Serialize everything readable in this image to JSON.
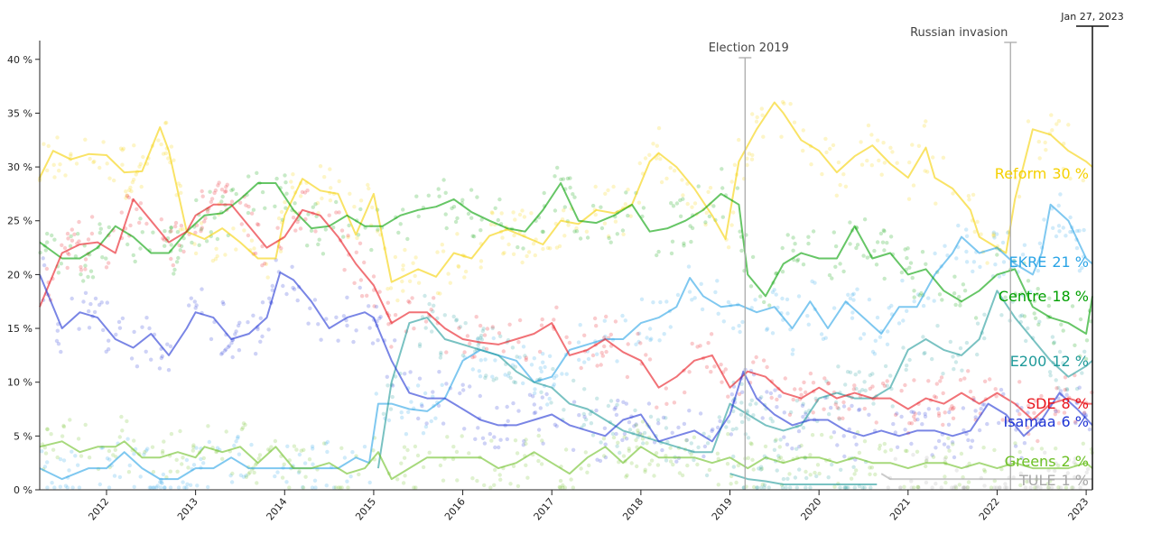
{
  "chart_data": {
    "type": "line",
    "title": "",
    "xlabel": "",
    "ylabel": "",
    "xlim": [
      2011.25,
      2023.07
    ],
    "ylim": [
      0,
      43
    ],
    "y_ticks": [
      {
        "value": 0,
        "label": "0 %"
      },
      {
        "value": 5,
        "label": "5 %"
      },
      {
        "value": 10,
        "label": "10 %"
      },
      {
        "value": 15,
        "label": "15 %"
      },
      {
        "value": 20,
        "label": "20 %"
      },
      {
        "value": 25,
        "label": "25 %"
      },
      {
        "value": 30,
        "label": "30 %"
      },
      {
        "value": 35,
        "label": "35 %"
      },
      {
        "value": 40,
        "label": "40 %"
      }
    ],
    "x_ticks": [
      {
        "value": 2012,
        "label": "2012"
      },
      {
        "value": 2013,
        "label": "2013"
      },
      {
        "value": 2014,
        "label": "2014"
      },
      {
        "value": 2015,
        "label": "2015"
      },
      {
        "value": 2016,
        "label": "2016"
      },
      {
        "value": 2017,
        "label": "2017"
      },
      {
        "value": 2018,
        "label": "2018"
      },
      {
        "value": 2019,
        "label": "2019"
      },
      {
        "value": 2020,
        "label": "2020"
      },
      {
        "value": 2021,
        "label": "2021"
      },
      {
        "value": 2022,
        "label": "2022"
      },
      {
        "value": 2023,
        "label": "2023"
      }
    ],
    "grid": false,
    "legend": "inline-right",
    "current_date_label": "Jan 27, 2023",
    "annotations": [
      {
        "x": 2019.17,
        "label": "Election 2019"
      },
      {
        "x": 2022.15,
        "label": "Russian invasion"
      }
    ],
    "series": [
      {
        "name": "Reform",
        "end_value": "30 %",
        "color": "#f5d000",
        "x": [
          2011.25,
          2011.4,
          2011.6,
          2011.8,
          2012.0,
          2012.2,
          2012.4,
          2012.6,
          2012.7,
          2012.9,
          2013.1,
          2013.3,
          2013.5,
          2013.7,
          2013.9,
          2014.0,
          2014.2,
          2014.4,
          2014.6,
          2014.8,
          2015.0,
          2015.2,
          2015.5,
          2015.7,
          2015.9,
          2016.1,
          2016.3,
          2016.5,
          2016.7,
          2016.9,
          2017.1,
          2017.3,
          2017.5,
          2017.7,
          2017.9,
          2018.1,
          2018.2,
          2018.4,
          2018.6,
          2018.8,
          2018.95,
          2019.1,
          2019.3,
          2019.5,
          2019.6,
          2019.8,
          2020.0,
          2020.2,
          2020.4,
          2020.6,
          2020.8,
          2021.0,
          2021.2,
          2021.3,
          2021.5,
          2021.7,
          2021.8,
          2022.0,
          2022.1,
          2022.2,
          2022.4,
          2022.6,
          2022.8,
          2023.0,
          2023.07
        ],
        "y": [
          29,
          31.5,
          30.7,
          31.2,
          31.1,
          29.5,
          29.6,
          33.7,
          31.5,
          24,
          23.3,
          24.3,
          23,
          21.5,
          21.5,
          25.5,
          28.9,
          27.8,
          27.5,
          23.7,
          27.5,
          19.3,
          20.5,
          19.8,
          22,
          21.5,
          23.6,
          24.2,
          23.5,
          22.8,
          25,
          24.7,
          26,
          25.7,
          26.5,
          30.5,
          31.3,
          30,
          28,
          25.5,
          23.3,
          30.5,
          33.5,
          36,
          35,
          32.5,
          31.5,
          29.5,
          31,
          32,
          30.3,
          29,
          31.8,
          29,
          28,
          26,
          23.5,
          22.5,
          22,
          27,
          33.5,
          33,
          31.5,
          30.5,
          30
        ]
      },
      {
        "name": "EKRE",
        "end_value": "21 %",
        "color": "#2aa4e6",
        "x": [
          2011.25,
          2011.5,
          2011.8,
          2012.0,
          2012.2,
          2012.4,
          2012.6,
          2012.8,
          2013.0,
          2013.2,
          2013.4,
          2013.6,
          2013.8,
          2014.0,
          2014.2,
          2014.4,
          2014.6,
          2014.8,
          2014.95,
          2015.05,
          2015.2,
          2015.4,
          2015.6,
          2015.8,
          2016.0,
          2016.2,
          2016.4,
          2016.6,
          2016.8,
          2017.0,
          2017.2,
          2017.4,
          2017.6,
          2017.8,
          2018.0,
          2018.2,
          2018.4,
          2018.55,
          2018.7,
          2018.9,
          2019.1,
          2019.3,
          2019.5,
          2019.7,
          2019.9,
          2020.1,
          2020.3,
          2020.5,
          2020.7,
          2020.9,
          2021.1,
          2021.3,
          2021.5,
          2021.6,
          2021.8,
          2022.0,
          2022.2,
          2022.4,
          2022.5,
          2022.6,
          2022.8,
          2023.0,
          2023.07
        ],
        "y": [
          2,
          1,
          2,
          2,
          3.5,
          2,
          1,
          1,
          2,
          2,
          3,
          2,
          2,
          2,
          2,
          2,
          2,
          3,
          2.5,
          8,
          8,
          7.5,
          7.3,
          8.5,
          12,
          13,
          12.5,
          12,
          10,
          10.5,
          13,
          13.5,
          14,
          14,
          15.5,
          16,
          17,
          19.7,
          18,
          17,
          17.2,
          16.5,
          17,
          15,
          17.5,
          15,
          17.5,
          16,
          14.5,
          17,
          17,
          20,
          22,
          23.5,
          22,
          22.5,
          21,
          20,
          22,
          26.5,
          25,
          21.5,
          21
        ]
      },
      {
        "name": "Centre",
        "end_value": "18 %",
        "color": "#00a000",
        "x": [
          2011.25,
          2011.5,
          2011.7,
          2011.9,
          2012.1,
          2012.3,
          2012.5,
          2012.7,
          2012.9,
          2013.1,
          2013.3,
          2013.5,
          2013.7,
          2013.9,
          2014.1,
          2014.3,
          2014.5,
          2014.7,
          2014.9,
          2015.1,
          2015.3,
          2015.5,
          2015.7,
          2015.9,
          2016.1,
          2016.3,
          2016.5,
          2016.7,
          2016.9,
          2017.1,
          2017.3,
          2017.5,
          2017.7,
          2017.9,
          2018.1,
          2018.3,
          2018.5,
          2018.7,
          2018.9,
          2019.1,
          2019.2,
          2019.4,
          2019.6,
          2019.8,
          2020.0,
          2020.2,
          2020.4,
          2020.6,
          2020.8,
          2021.0,
          2021.2,
          2021.4,
          2021.6,
          2021.8,
          2022.0,
          2022.2,
          2022.4,
          2022.6,
          2022.8,
          2023.0,
          2023.07
        ],
        "y": [
          23,
          21.5,
          21.5,
          22.5,
          24.5,
          23.5,
          22,
          22,
          24,
          25.5,
          25.7,
          27,
          28.5,
          28.5,
          26,
          24.3,
          24.5,
          25.5,
          24.5,
          24.5,
          25.5,
          26,
          26.3,
          27,
          25.8,
          25,
          24.3,
          24,
          26,
          28.5,
          25,
          24.8,
          25.5,
          26.5,
          24,
          24.3,
          25,
          26,
          27.5,
          26.5,
          20,
          18,
          21,
          22,
          21.5,
          21.5,
          24.5,
          21.5,
          22,
          20,
          20.5,
          18.5,
          17.5,
          18.5,
          20,
          20.5,
          17,
          16,
          15.5,
          14.5,
          18
        ]
      },
      {
        "name": "E200",
        "end_value": "12 %",
        "color": "#1f9a9a",
        "x": [
          2015.05,
          2015.2,
          2015.4,
          2015.6,
          2015.8,
          2016.0,
          2016.2,
          2016.4,
          2016.6,
          2016.8,
          2017.0,
          2017.2,
          2017.4,
          2017.6,
          2017.8,
          2018.0,
          2018.2,
          2018.4,
          2018.6,
          2018.8,
          2019.0,
          2019.2,
          2019.4,
          2019.6,
          2019.8,
          2020.0,
          2020.2,
          2020.4,
          2020.6,
          2020.8,
          2021.0,
          2021.2,
          2021.4,
          2021.6,
          2021.8,
          2022.0,
          2022.2,
          2022.4,
          2022.6,
          2022.8,
          2023.0,
          2023.07
        ],
        "y": [
          2,
          10,
          15.5,
          16,
          14,
          13.5,
          13,
          12.5,
          11,
          10,
          9.5,
          8,
          7.5,
          6.5,
          5.5,
          5,
          4.5,
          4,
          3.5,
          3.5,
          8,
          7,
          6,
          5.5,
          6,
          8.5,
          9,
          8.5,
          8.5,
          9.5,
          13,
          14,
          13,
          12.5,
          14,
          18.5,
          16,
          14,
          12,
          10.5,
          11.5,
          12
        ]
      },
      {
        "name": "SDE",
        "end_value": "8 %",
        "color": "#e8141c",
        "x": [
          2011.25,
          2011.5,
          2011.7,
          2011.9,
          2012.1,
          2012.3,
          2012.5,
          2012.7,
          2012.9,
          2013.0,
          2013.2,
          2013.4,
          2013.6,
          2013.8,
          2014.0,
          2014.2,
          2014.4,
          2014.6,
          2014.8,
          2015.0,
          2015.2,
          2015.4,
          2015.6,
          2015.8,
          2016.0,
          2016.2,
          2016.4,
          2016.6,
          2016.8,
          2017.0,
          2017.2,
          2017.4,
          2017.6,
          2017.8,
          2018.0,
          2018.2,
          2018.4,
          2018.6,
          2018.8,
          2019.0,
          2019.2,
          2019.4,
          2019.6,
          2019.8,
          2020.0,
          2020.2,
          2020.4,
          2020.6,
          2020.8,
          2021.0,
          2021.2,
          2021.4,
          2021.6,
          2021.8,
          2022.0,
          2022.2,
          2022.4,
          2022.6,
          2022.8,
          2023.0,
          2023.07
        ],
        "y": [
          17,
          22,
          22.8,
          23,
          22,
          27,
          25,
          23,
          24,
          25.5,
          26.5,
          26.5,
          24.5,
          22.5,
          23.5,
          26,
          25.5,
          23.5,
          21,
          19,
          15.5,
          16.5,
          16.5,
          15,
          14,
          13.7,
          13.5,
          14,
          14.5,
          15.5,
          12.5,
          13,
          14,
          12.8,
          12,
          9.5,
          10.5,
          12,
          12.5,
          9.5,
          11,
          10.5,
          9,
          8.5,
          9.5,
          8.5,
          9,
          8.5,
          8.5,
          7.5,
          8.5,
          8,
          9,
          8,
          9,
          8,
          6.5,
          8,
          8.5,
          8,
          8
        ]
      },
      {
        "name": "Isamaa",
        "end_value": "6 %",
        "color": "#1f34d4",
        "x": [
          2011.25,
          2011.5,
          2011.7,
          2011.9,
          2012.1,
          2012.3,
          2012.5,
          2012.7,
          2012.9,
          2013.0,
          2013.2,
          2013.4,
          2013.6,
          2013.8,
          2013.95,
          2014.1,
          2014.3,
          2014.5,
          2014.7,
          2014.9,
          2015.0,
          2015.2,
          2015.4,
          2015.6,
          2015.8,
          2016.0,
          2016.2,
          2016.4,
          2016.6,
          2016.8,
          2017.0,
          2017.2,
          2017.4,
          2017.6,
          2017.8,
          2018.0,
          2018.2,
          2018.4,
          2018.6,
          2018.8,
          2019.0,
          2019.15,
          2019.3,
          2019.5,
          2019.7,
          2019.9,
          2020.1,
          2020.3,
          2020.5,
          2020.7,
          2020.9,
          2021.1,
          2021.3,
          2021.5,
          2021.7,
          2021.9,
          2022.1,
          2022.3,
          2022.5,
          2022.7,
          2022.9,
          2023.07
        ],
        "y": [
          20,
          15,
          16.5,
          16,
          14,
          13.2,
          14.5,
          12.5,
          15,
          16.5,
          16,
          14,
          14.5,
          16,
          20.2,
          19.5,
          17.5,
          15,
          16,
          16.5,
          16,
          12,
          9,
          8.5,
          8.5,
          7.5,
          6.5,
          6,
          6,
          6.5,
          7,
          6,
          5.5,
          5,
          6.5,
          7,
          4.5,
          5,
          5.5,
          4.5,
          7,
          11,
          8.5,
          7,
          6,
          6.5,
          6.5,
          5.5,
          5,
          5.5,
          5,
          5.5,
          5.5,
          5,
          5.5,
          8,
          7,
          5,
          6.5,
          9,
          7.5,
          6
        ]
      },
      {
        "name": "Greens",
        "end_value": "2 %",
        "color": "#6cc024",
        "x": [
          2011.25,
          2011.5,
          2011.7,
          2011.9,
          2012.1,
          2012.2,
          2012.4,
          2012.6,
          2012.8,
          2013.0,
          2013.1,
          2013.3,
          2013.5,
          2013.7,
          2013.9,
          2014.1,
          2014.3,
          2014.5,
          2014.7,
          2014.9,
          2015.05,
          2015.2,
          2015.4,
          2015.6,
          2015.8,
          2016.0,
          2016.2,
          2016.4,
          2016.6,
          2016.8,
          2017.0,
          2017.2,
          2017.4,
          2017.6,
          2017.8,
          2018.0,
          2018.2,
          2018.4,
          2018.6,
          2018.8,
          2019.0,
          2019.2,
          2019.4,
          2019.6,
          2019.8,
          2020.0,
          2020.2,
          2020.4,
          2020.6,
          2020.8,
          2021.0,
          2021.2,
          2021.4,
          2021.6,
          2021.8,
          2022.0,
          2022.2,
          2022.4,
          2022.6,
          2022.8,
          2023.0,
          2023.07
        ],
        "y": [
          4,
          4.5,
          3.5,
          4,
          4,
          4.5,
          3,
          3,
          3.5,
          3,
          4,
          3.5,
          4,
          2.5,
          4,
          2,
          2,
          2.5,
          1.5,
          2,
          3.5,
          1,
          2,
          3,
          3,
          3,
          3,
          2,
          2.5,
          3.5,
          2.5,
          1.5,
          3,
          4,
          2.5,
          4,
          3,
          3,
          3,
          2.5,
          3,
          2,
          3,
          2.5,
          3,
          3,
          2.5,
          3,
          2.5,
          2.5,
          2,
          2.5,
          2.5,
          2,
          2.5,
          2,
          2.5,
          2,
          2,
          2,
          2.5,
          2
        ]
      },
      {
        "name": "E200 (early)",
        "color": "#1f9a9a",
        "hidden_label": true,
        "x": [
          2019.0,
          2019.2,
          2019.4,
          2019.6,
          2019.8,
          2020.0,
          2020.2,
          2020.4,
          2020.65
        ],
        "y": [
          1.5,
          1.0,
          0.8,
          0.5,
          0.5,
          0.5,
          0.5,
          0.5,
          0.5
        ]
      },
      {
        "name": "TULE",
        "end_value": "1 %",
        "color": "#a8a8a8",
        "x": [
          2020.7,
          2020.8,
          2021.0,
          2021.5,
          2022.0,
          2022.5,
          2023.0,
          2023.07
        ],
        "y": [
          1.5,
          1,
          1,
          1,
          1,
          1,
          1,
          1
        ]
      }
    ]
  }
}
